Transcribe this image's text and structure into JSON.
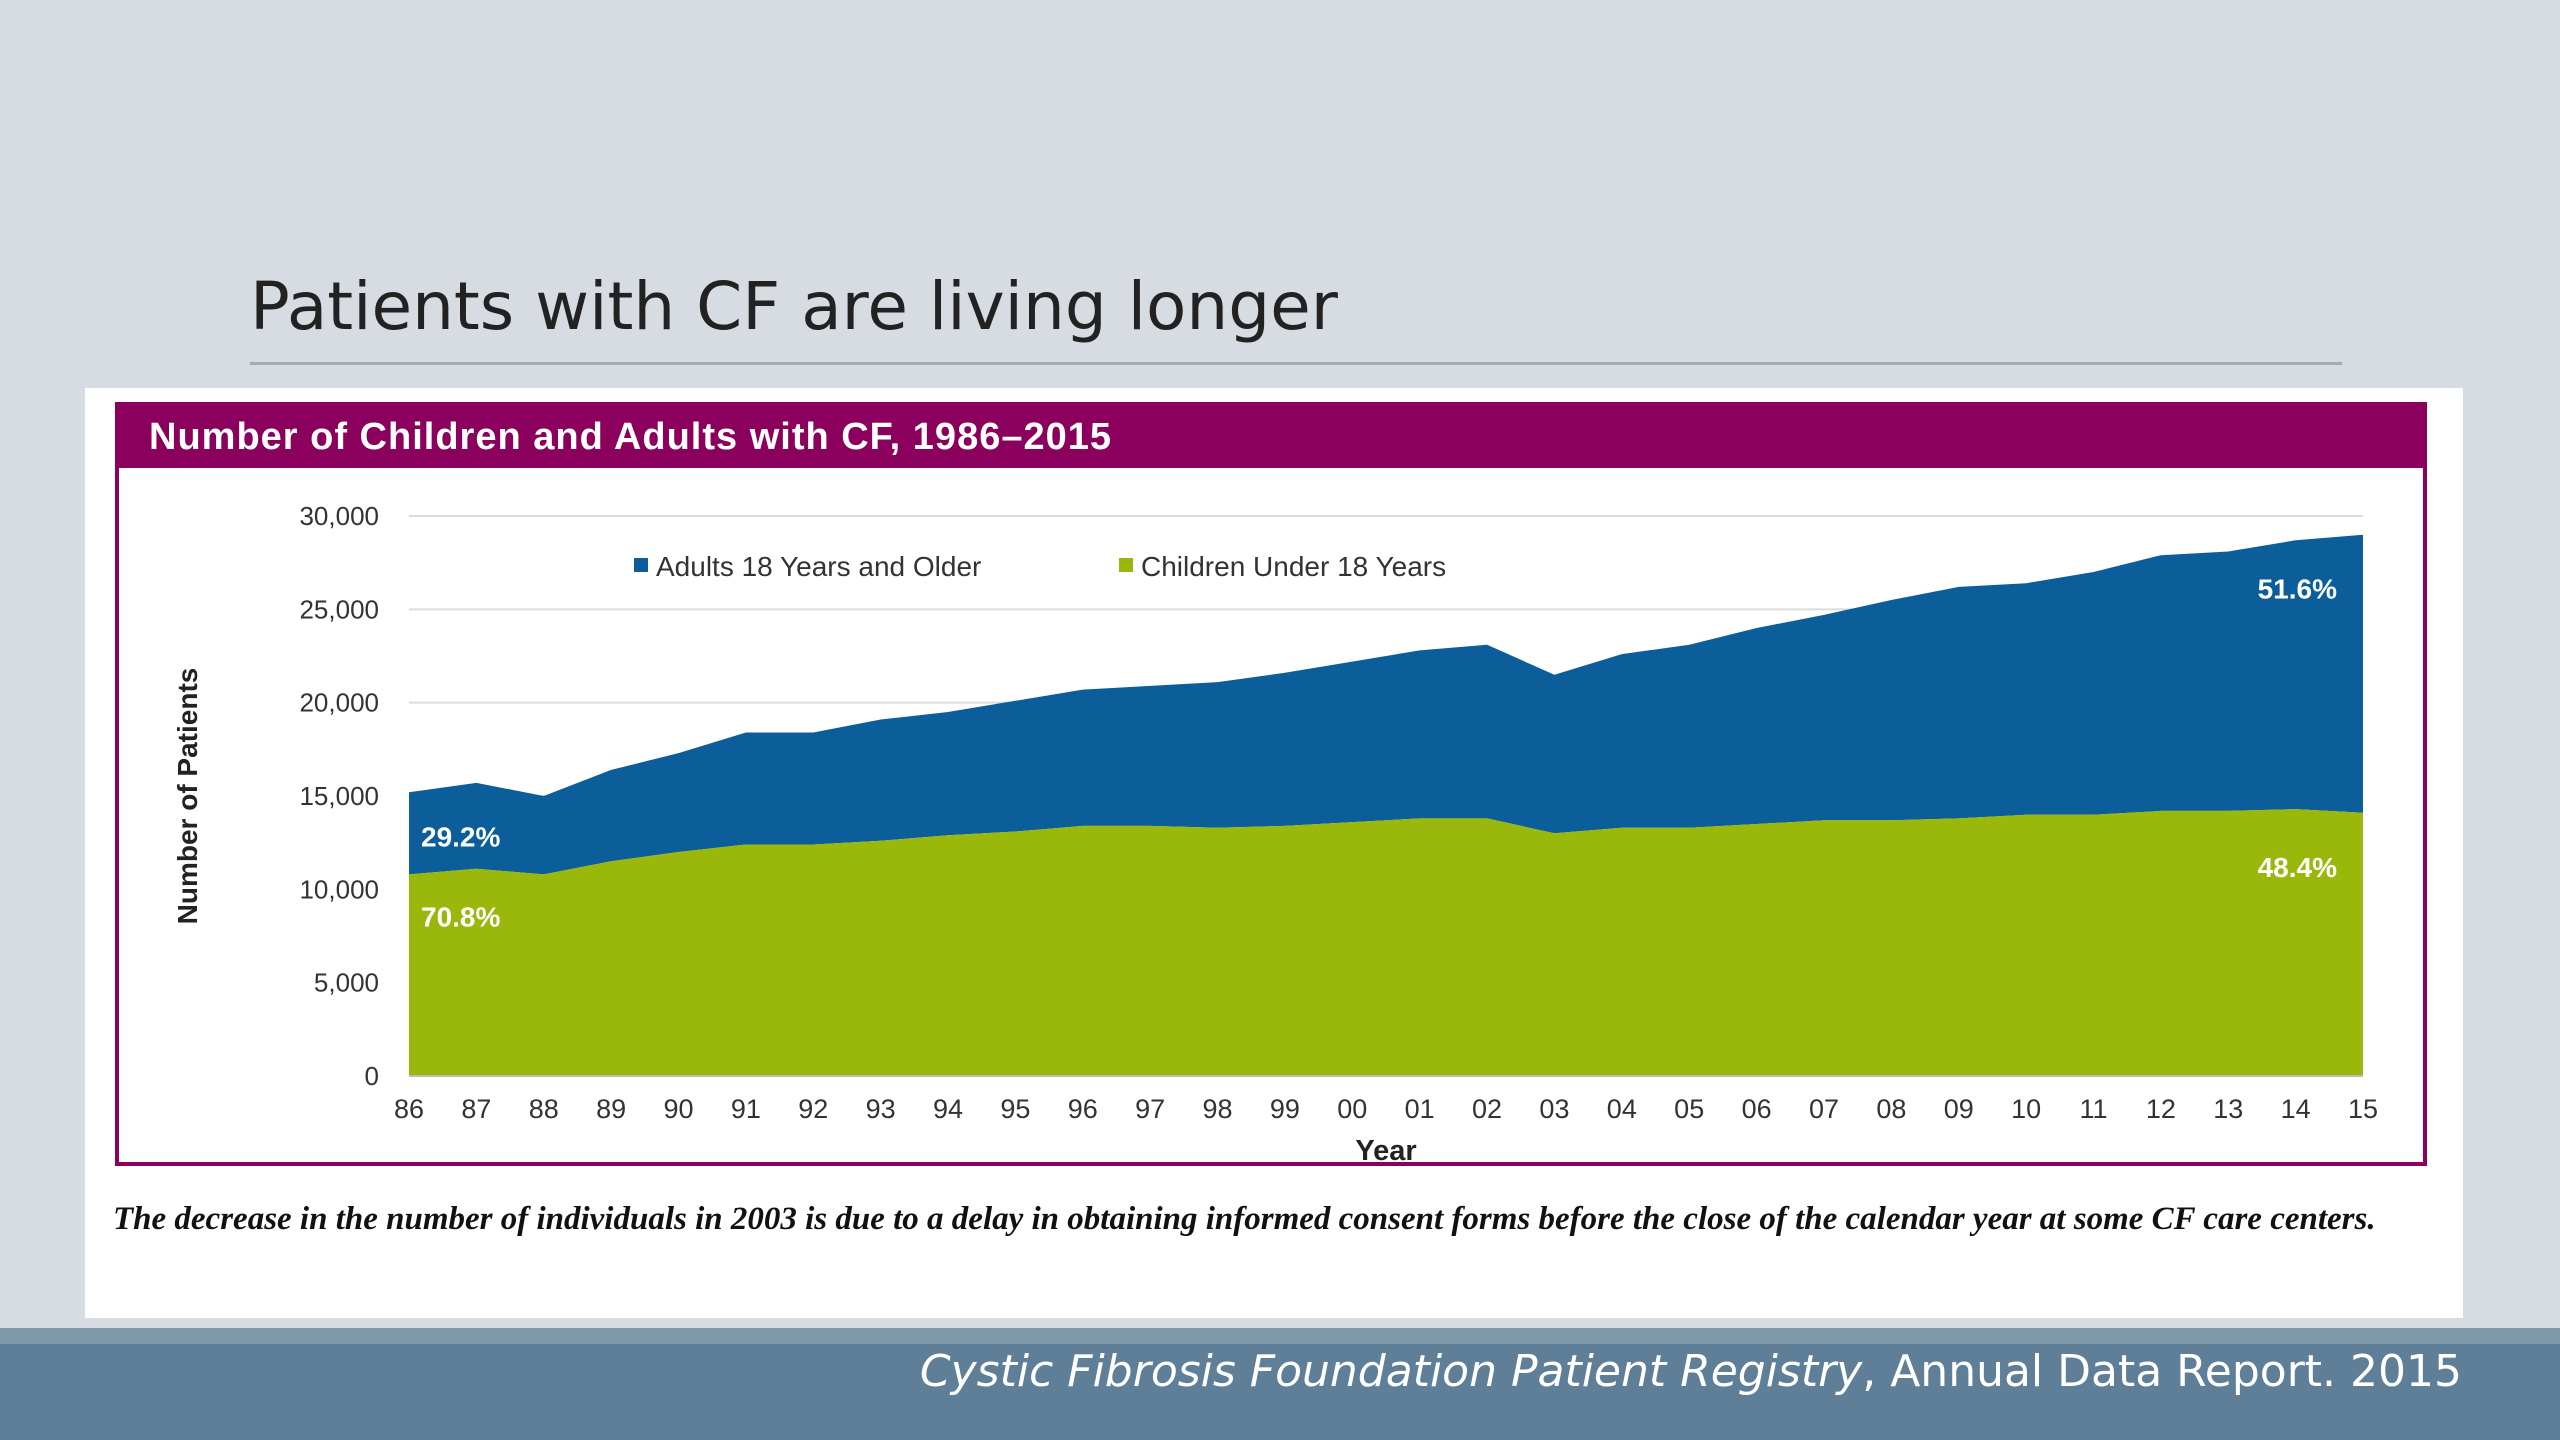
{
  "slide": {
    "title": "Patients with CF are living longer"
  },
  "figure": {
    "header": "Number of Children and Adults with CF, 1986–2015",
    "caption": "The decrease in the number of individuals in 2003 is due to a delay in obtaining informed consent forms before the close of the calendar year at some CF care centers."
  },
  "footer": {
    "source_italic": "Cystic Fibrosis Foundation Patient Registry",
    "source_rest": ", Annual Data Report. 2015"
  },
  "chart_data": {
    "type": "area",
    "stacked": true,
    "title": "Number of Children and Adults with CF, 1986–2015",
    "xlabel": "Year",
    "ylabel": "Number of Patients",
    "ylim": [
      0,
      30000
    ],
    "yticks": [
      "0",
      "5,000",
      "10,000",
      "15,000",
      "20,000",
      "25,000",
      "30,000"
    ],
    "categories": [
      "86",
      "87",
      "88",
      "89",
      "90",
      "91",
      "92",
      "93",
      "94",
      "95",
      "96",
      "97",
      "98",
      "99",
      "00",
      "01",
      "02",
      "03",
      "04",
      "05",
      "06",
      "07",
      "08",
      "09",
      "10",
      "11",
      "12",
      "13",
      "14",
      "15"
    ],
    "grid": "horizontal",
    "legend_position": "top",
    "series": [
      {
        "name": "Children Under 18 Years",
        "color": "#9ab80c",
        "values": [
          10800,
          11100,
          10800,
          11500,
          12000,
          12400,
          12400,
          12600,
          12900,
          13100,
          13400,
          13400,
          13300,
          13400,
          13600,
          13800,
          13800,
          13000,
          13300,
          13300,
          13500,
          13700,
          13700,
          13800,
          14000,
          14000,
          14200,
          14200,
          14300,
          14100
        ]
      },
      {
        "name": "Adults 18 Years and Older",
        "color": "#0b5e9a",
        "values": [
          4400,
          4600,
          4200,
          4900,
          5300,
          6000,
          6000,
          6500,
          6600,
          7000,
          7300,
          7500,
          7800,
          8200,
          8600,
          9000,
          9300,
          8500,
          9300,
          9800,
          10500,
          11000,
          11800,
          12400,
          12400,
          13000,
          13700,
          13900,
          14400,
          14900
        ]
      }
    ],
    "annotations": [
      {
        "text": "29.2%",
        "year": "86",
        "series": "Adults 18 Years and Older"
      },
      {
        "text": "70.8%",
        "year": "86",
        "series": "Children Under 18 Years"
      },
      {
        "text": "51.6%",
        "year": "15",
        "series": "Adults 18 Years and Older"
      },
      {
        "text": "48.4%",
        "year": "15",
        "series": "Children Under 18 Years"
      }
    ]
  },
  "colors": {
    "header_bg": "#8a005c",
    "adults": "#0b5e9a",
    "children": "#9ab80c",
    "footer_bg": "#5e7f97"
  }
}
